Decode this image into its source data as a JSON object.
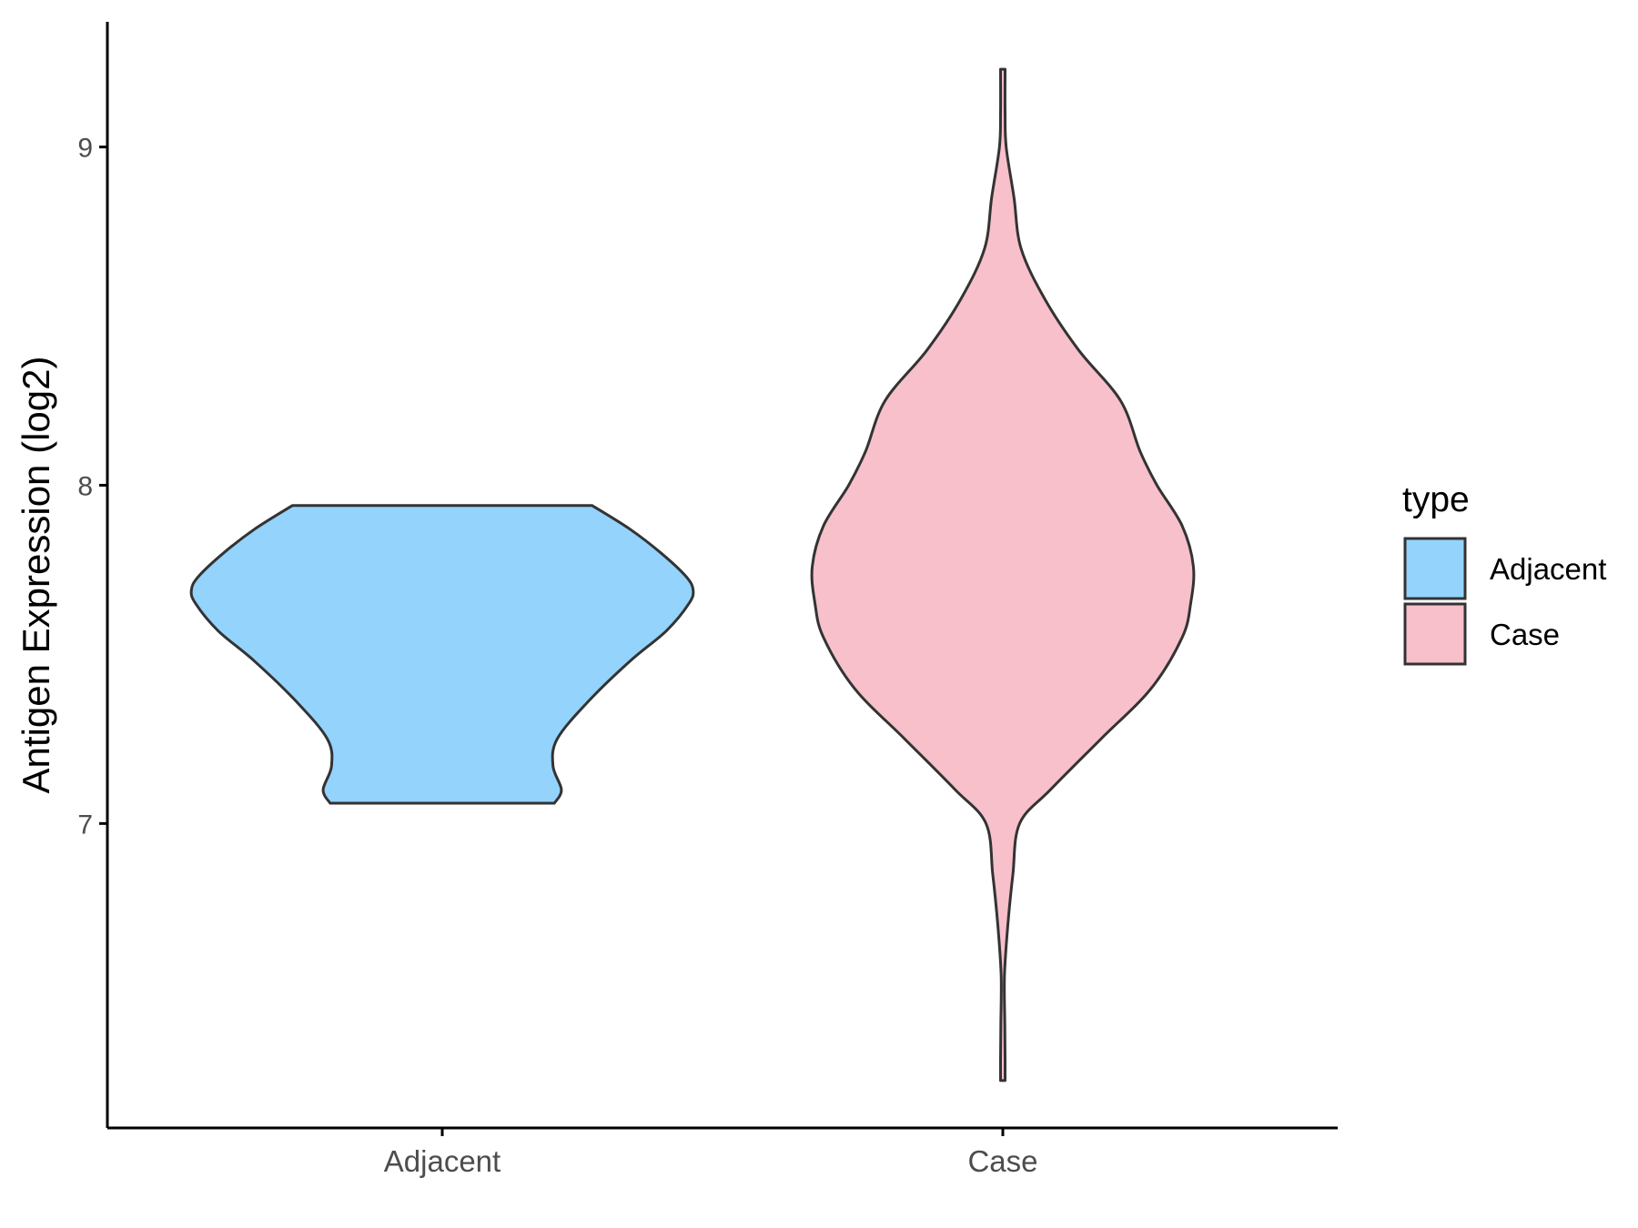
{
  "chart_data": {
    "type": "violin",
    "title": "",
    "xlabel": "",
    "ylabel": "Antigen Expression (log2)",
    "categories": [
      "Adjacent",
      "Case"
    ],
    "ylim": [
      6.1,
      9.37
    ],
    "yticks": [
      7,
      8,
      9
    ],
    "yticklabels": [
      "7",
      "8",
      "9"
    ],
    "grid": false,
    "legend": {
      "title": "type",
      "placement": "right",
      "entries": [
        {
          "label": "Adjacent",
          "color": "#93d3fc"
        },
        {
          "label": "Case",
          "color": "#f7c0cb"
        }
      ]
    },
    "series": [
      {
        "name": "Adjacent",
        "color": "#93d3fc",
        "ymin": 7.06,
        "ymax": 7.94,
        "density": [
          [
            7.06,
            0.4
          ],
          [
            7.1,
            0.425
          ],
          [
            7.17,
            0.395
          ],
          [
            7.25,
            0.41
          ],
          [
            7.36,
            0.52
          ],
          [
            7.48,
            0.67
          ],
          [
            7.57,
            0.8
          ],
          [
            7.65,
            0.88
          ],
          [
            7.69,
            0.895
          ],
          [
            7.73,
            0.87
          ],
          [
            7.8,
            0.78
          ],
          [
            7.87,
            0.67
          ],
          [
            7.94,
            0.535
          ]
        ]
      },
      {
        "name": "Case",
        "color": "#f7c0cb",
        "ymin": 6.24,
        "ymax": 9.23,
        "density": [
          [
            6.24,
            0.008
          ],
          [
            6.3,
            0.008
          ],
          [
            6.4,
            0.007
          ],
          [
            6.55,
            0.006
          ],
          [
            6.7,
            0.018
          ],
          [
            6.85,
            0.036
          ],
          [
            7.0,
            0.06
          ],
          [
            7.1,
            0.17
          ],
          [
            7.25,
            0.35
          ],
          [
            7.4,
            0.53
          ],
          [
            7.55,
            0.64
          ],
          [
            7.65,
            0.67
          ],
          [
            7.76,
            0.68
          ],
          [
            7.88,
            0.64
          ],
          [
            8.0,
            0.55
          ],
          [
            8.1,
            0.49
          ],
          [
            8.25,
            0.42
          ],
          [
            8.4,
            0.27
          ],
          [
            8.55,
            0.15
          ],
          [
            8.7,
            0.065
          ],
          [
            8.85,
            0.04
          ],
          [
            9.0,
            0.012
          ],
          [
            9.1,
            0.008
          ],
          [
            9.23,
            0.008
          ]
        ]
      }
    ]
  }
}
